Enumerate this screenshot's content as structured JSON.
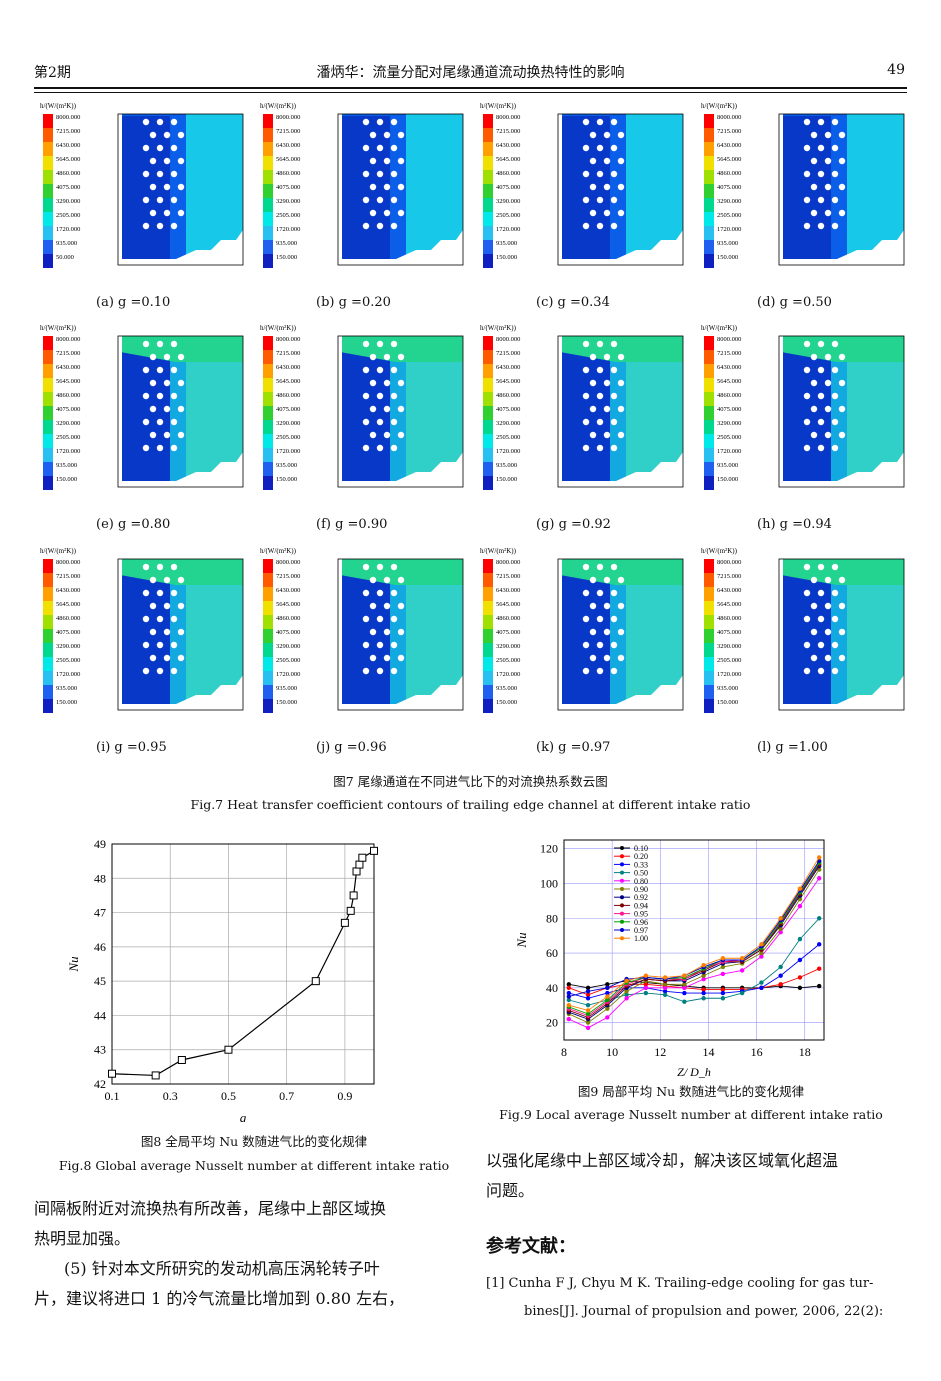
{
  "header": {
    "left": "第2期",
    "center": "潘炳华：流量分配对尾缘通道流动换热特性的影响",
    "right": "49"
  },
  "contours": {
    "legend_title": "h/(W/(m²K))",
    "panels": [
      {
        "label": "(a)  g =0.10",
        "levels": [
          "8000.000",
          "7215.000",
          "6430.000",
          "5645.000",
          "4860.000",
          "4075.000",
          "3290.000",
          "2505.000",
          "1720.000",
          "935.000",
          "50.000"
        ]
      },
      {
        "label": "(b)  g =0.20",
        "levels": [
          "8000.000",
          "7215.000",
          "6430.000",
          "5645.000",
          "4860.000",
          "4075.000",
          "3290.000",
          "2505.000",
          "1720.000",
          "935.000",
          "150.000"
        ]
      },
      {
        "label": "(c)  g =0.34",
        "levels": [
          "8000.000",
          "7215.000",
          "6430.000",
          "5645.000",
          "4860.000",
          "4075.000",
          "3290.000",
          "2505.000",
          "1720.000",
          "935.000",
          "150.000"
        ]
      },
      {
        "label": "(d)  g =0.50",
        "levels": [
          "8000.000",
          "7215.000",
          "6430.000",
          "5645.000",
          "4860.000",
          "4075.000",
          "3290.000",
          "2505.000",
          "1720.000",
          "935.000",
          "150.000"
        ]
      },
      {
        "label": "(e)  g =0.80",
        "levels": [
          "8000.000",
          "7215.000",
          "6430.000",
          "5645.000",
          "4860.000",
          "4075.000",
          "3290.000",
          "2505.000",
          "1720.000",
          "935.000",
          "150.000"
        ]
      },
      {
        "label": "(f)  g =0.90",
        "levels": [
          "8000.000",
          "7215.000",
          "6430.000",
          "5645.000",
          "4860.000",
          "4075.000",
          "3290.000",
          "2505.000",
          "1720.000",
          "935.000",
          "150.000"
        ]
      },
      {
        "label": "(g)  g =0.92",
        "levels": [
          "8000.000",
          "7215.000",
          "6430.000",
          "5645.000",
          "4860.000",
          "4075.000",
          "3290.000",
          "2505.000",
          "1720.000",
          "935.000",
          "150.000"
        ]
      },
      {
        "label": "(h)  g =0.94",
        "levels": [
          "8000.000",
          "7215.000",
          "6430.000",
          "5645.000",
          "4860.000",
          "4075.000",
          "3290.000",
          "2505.000",
          "1720.000",
          "935.000",
          "150.000"
        ]
      },
      {
        "label": "(i)  g =0.95",
        "levels": [
          "8000.000",
          "7215.000",
          "6430.000",
          "5645.000",
          "4860.000",
          "4075.000",
          "3290.000",
          "2505.000",
          "1720.000",
          "935.000",
          "150.000"
        ]
      },
      {
        "label": "(j)  g =0.96",
        "levels": [
          "8000.000",
          "7215.000",
          "6430.000",
          "5645.000",
          "4860.000",
          "4075.000",
          "3290.000",
          "2505.000",
          "1720.000",
          "935.000",
          "150.000"
        ]
      },
      {
        "label": "(k)  g =0.97",
        "levels": [
          "8000.000",
          "7215.000",
          "6430.000",
          "5645.000",
          "4860.000",
          "4075.000",
          "3290.000",
          "2505.000",
          "1720.000",
          "935.000",
          "150.000"
        ]
      },
      {
        "label": "(l)  g =1.00",
        "levels": [
          "8000.000",
          "7215.000",
          "6430.000",
          "5645.000",
          "4860.000",
          "4075.000",
          "3290.000",
          "2505.000",
          "1720.000",
          "935.000",
          "150.000"
        ]
      }
    ],
    "colors": [
      "#ff0000",
      "#ff5a00",
      "#ffa000",
      "#f0e000",
      "#9fe000",
      "#30d030",
      "#00d890",
      "#00e8e8",
      "#28c0f0",
      "#2060f0",
      "#1020c0"
    ]
  },
  "fig7": {
    "cn": "图7  尾缘通道在不同进气比下的对流换热系数云图",
    "en": "Fig.7  Heat transfer coefficient contours of trailing edge channel at different intake ratio"
  },
  "fig8": {
    "cn": "图8  全局平均 Nu 数随进气比的变化规律",
    "en": "Fig.8  Global average Nusselt number at different intake ratio"
  },
  "fig9": {
    "cn": "图9  局部平均 Nu 数随进气比的变化规律",
    "en": "Fig.9  Local average Nusselt number at different intake ratio"
  },
  "chart_data": [
    {
      "type": "line",
      "xlabel": "g",
      "ylabel": "Nu",
      "xlim": [
        0.1,
        1.0
      ],
      "ylim": [
        42,
        49
      ],
      "xticks": [
        "0.1",
        "0.3",
        "0.5",
        "0.7",
        "0.9"
      ],
      "yticks": [
        "42",
        "43",
        "44",
        "45",
        "46",
        "47",
        "48",
        "49"
      ],
      "x": [
        0.1,
        0.25,
        0.34,
        0.5,
        0.8,
        0.9,
        0.92,
        0.93,
        0.94,
        0.95,
        0.96,
        1.0
      ],
      "y": [
        42.3,
        42.25,
        42.7,
        43.0,
        45.0,
        46.7,
        47.05,
        47.5,
        48.2,
        48.4,
        48.6,
        48.8
      ],
      "grid": true
    },
    {
      "type": "line",
      "xlabel": "Z/ D_h",
      "ylabel": "Nu",
      "xlim": [
        8,
        18.8
      ],
      "ylim": [
        10,
        125
      ],
      "xticks": [
        "8",
        "10",
        "12",
        "14",
        "16",
        "18"
      ],
      "yticks": [
        "20",
        "40",
        "60",
        "80",
        "100",
        "120"
      ],
      "legend": "top-left inside",
      "x": [
        8.2,
        9.0,
        9.8,
        10.6,
        11.4,
        12.2,
        13.0,
        13.8,
        14.6,
        15.4,
        16.2,
        17.0,
        17.8,
        18.6
      ],
      "series": [
        {
          "name": "0.10",
          "color": "#000000",
          "y": [
            42,
            40,
            42,
            44,
            43,
            42,
            41,
            40,
            40,
            40,
            40,
            41,
            40,
            41
          ]
        },
        {
          "name": "0.20",
          "color": "#ff0000",
          "y": [
            40,
            36,
            40,
            42,
            42,
            41,
            40,
            39,
            39,
            39,
            40,
            42,
            46,
            51
          ]
        },
        {
          "name": "0.33",
          "color": "#0000ff",
          "y": [
            37,
            34,
            37,
            40,
            40,
            38,
            37,
            37,
            37,
            38,
            40,
            47,
            56,
            65
          ]
        },
        {
          "name": "0.50",
          "color": "#008080",
          "y": [
            33,
            30,
            33,
            36,
            37,
            36,
            32,
            34,
            34,
            37,
            43,
            52,
            68,
            80
          ]
        },
        {
          "name": "0.80",
          "color": "#ff00ff",
          "y": [
            22,
            17,
            23,
            34,
            40,
            40,
            40,
            45,
            48,
            50,
            58,
            72,
            87,
            103
          ]
        },
        {
          "name": "0.90",
          "color": "#808000",
          "y": [
            25,
            20,
            28,
            38,
            44,
            42,
            42,
            47,
            52,
            54,
            60,
            74,
            91,
            108
          ]
        },
        {
          "name": "0.92",
          "color": "#000080",
          "y": [
            26,
            22,
            30,
            40,
            45,
            44,
            44,
            49,
            54,
            55,
            62,
            76,
            93,
            110
          ]
        },
        {
          "name": "0.94",
          "color": "#800000",
          "y": [
            27,
            23,
            31,
            41,
            45,
            44,
            45,
            50,
            55,
            55,
            62,
            77,
            94,
            111
          ]
        },
        {
          "name": "0.95",
          "color": "#ff1493",
          "y": [
            28,
            24,
            32,
            42,
            46,
            45,
            45,
            51,
            55,
            56,
            63,
            78,
            95,
            112
          ]
        },
        {
          "name": "0.96",
          "color": "#00a000",
          "y": [
            29,
            25,
            33,
            43,
            46,
            45,
            46,
            51,
            56,
            56,
            63,
            78,
            95,
            112
          ]
        },
        {
          "name": "0.97",
          "color": "#0000cd",
          "y": [
            35,
            38,
            40,
            45,
            46,
            45,
            47,
            52,
            56,
            56,
            64,
            79,
            96,
            113
          ]
        },
        {
          "name": "1.00",
          "color": "#ff8000",
          "y": [
            30,
            27,
            35,
            44,
            47,
            46,
            47,
            53,
            57,
            57,
            65,
            80,
            97,
            115
          ]
        }
      ]
    }
  ],
  "text": {
    "left_p1": [
      "间隔板附近对流换热有所改善，尾缘中上部区域换",
      "热明显加强。"
    ],
    "left_p2": [
      "(5)  针对本文所研究的发动机高压涡轮转子叶",
      "片，建议将进口 1 的冷气流量比增加到 0.80 左右，"
    ],
    "right_p1": [
      "以强化尾缘中上部区域冷却，解决该区域氧化超温",
      "问题。"
    ],
    "ref_title": "参考文献：",
    "ref1": [
      "[1]    Cunha F J, Chyu M K. Trailing-edge cooling for gas tur-",
      "bines[J]. Journal of propulsion and power, 2006, 22(2):"
    ]
  }
}
